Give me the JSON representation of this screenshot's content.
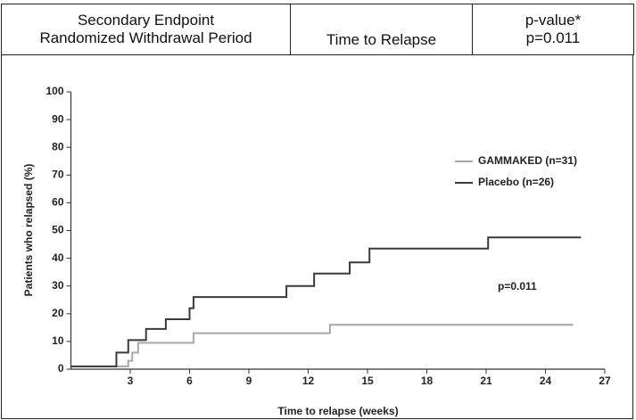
{
  "table": {
    "header": [
      [
        "Secondary Endpoint",
        "Randomized Withdrawal Period"
      ],
      "Time to Relapse",
      [
        "p-value*",
        "p=0.011"
      ]
    ]
  },
  "chart_data": {
    "type": "step",
    "y_label": "Patients who relapsed (%)",
    "x_label": "Time to relapse (weeks)",
    "annotation": "p=0.011",
    "xlim": [
      0,
      27
    ],
    "ylim": [
      0,
      100
    ],
    "xticks": [
      3,
      6,
      9,
      12,
      15,
      18,
      21,
      24,
      27
    ],
    "yticks": [
      0,
      10,
      20,
      30,
      40,
      50,
      60,
      70,
      80,
      90,
      100
    ],
    "series": [
      {
        "name": "GAMMAKED (n=31)",
        "color": "#a8a8a8",
        "x": [
          0,
          2.9,
          3.1,
          3.4,
          6.2,
          13.1,
          25.4
        ],
        "values": [
          1,
          3,
          6,
          9.5,
          13,
          16,
          16
        ]
      },
      {
        "name": "Placebo (n=26)",
        "color": "#3a3a3a",
        "x": [
          0,
          2.3,
          2.9,
          3.8,
          4.8,
          6.0,
          6.2,
          10.9,
          12.3,
          14.1,
          15.1,
          21.1,
          25.8
        ],
        "values": [
          1,
          6,
          10.5,
          14.5,
          18,
          22,
          26,
          30,
          34.5,
          38.5,
          43.5,
          47.5,
          47.5
        ]
      }
    ]
  }
}
